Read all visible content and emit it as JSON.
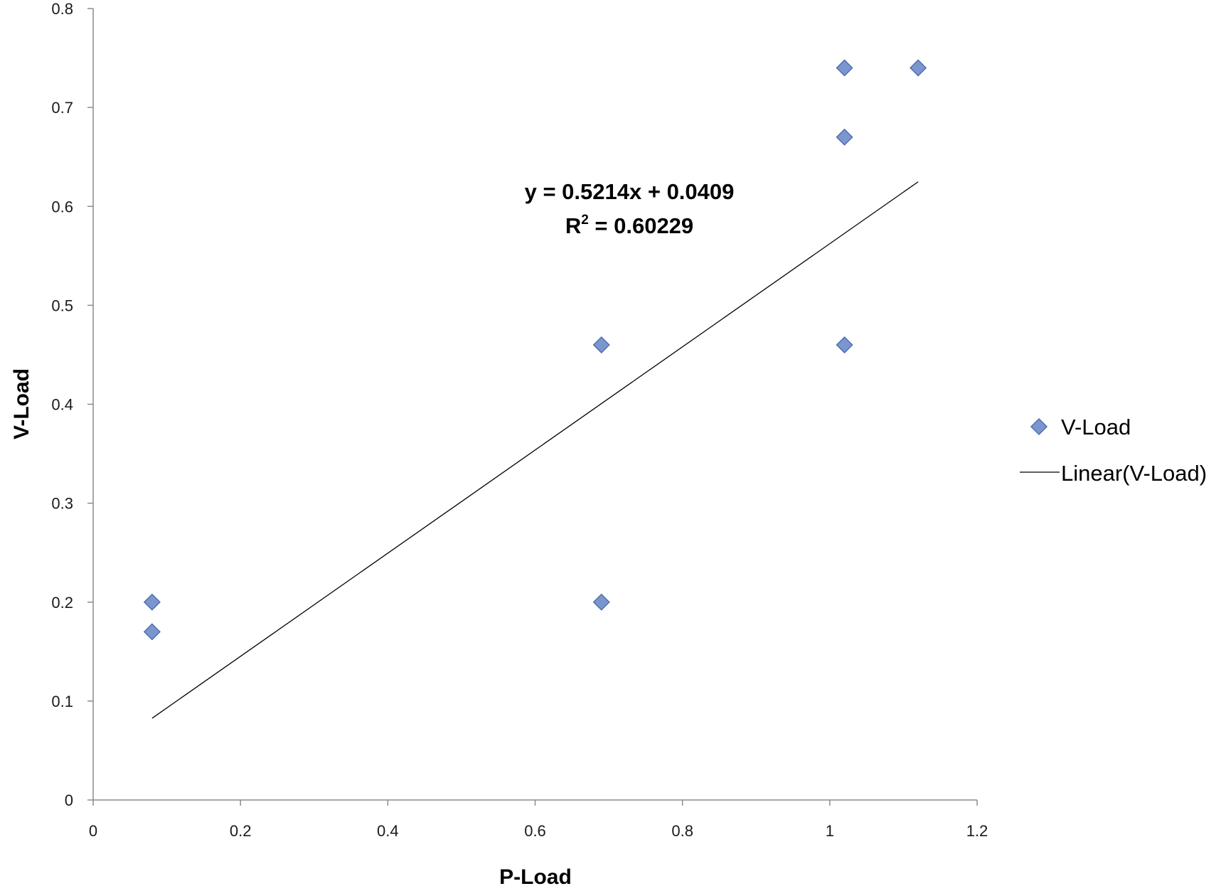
{
  "chart_data": {
    "type": "scatter",
    "title": "",
    "xlabel": "P-Load",
    "ylabel": "V-Load",
    "xlim": [
      0,
      1.2
    ],
    "ylim": [
      0,
      0.8
    ],
    "x_ticks": [
      "0",
      "0.2",
      "0.4",
      "0.6",
      "0.8",
      "1",
      "1.2"
    ],
    "y_ticks": [
      "0",
      "0.1",
      "0.2",
      "0.3",
      "0.4",
      "0.5",
      "0.6",
      "0.7",
      "0.8"
    ],
    "grid": false,
    "legend_position": "right",
    "series": [
      {
        "name": "V-Load",
        "marker": "diamond",
        "color": "#4f6fae",
        "fill": "#7b96cf",
        "points": [
          {
            "x": 0.08,
            "y": 0.2
          },
          {
            "x": 0.08,
            "y": 0.17
          },
          {
            "x": 0.69,
            "y": 0.46
          },
          {
            "x": 0.69,
            "y": 0.2
          },
          {
            "x": 1.02,
            "y": 0.74
          },
          {
            "x": 1.02,
            "y": 0.67
          },
          {
            "x": 1.02,
            "y": 0.46
          },
          {
            "x": 1.12,
            "y": 0.74
          }
        ]
      }
    ],
    "trendline": {
      "name": "Linear(V-Load)",
      "type": "linear",
      "slope": 0.5214,
      "intercept": 0.0409,
      "x_range": [
        0.08,
        1.12
      ],
      "color": "#000000",
      "equation_label": "y = 0.5214x + 0.0409",
      "r2_prefix": "R",
      "r2_superscript": "2",
      "r2_value": " = 0.60229"
    },
    "legend": {
      "items": [
        {
          "label": "V-Load",
          "symbol": "diamond"
        },
        {
          "label": "Linear(V-Load)",
          "symbol": "line"
        }
      ]
    }
  }
}
